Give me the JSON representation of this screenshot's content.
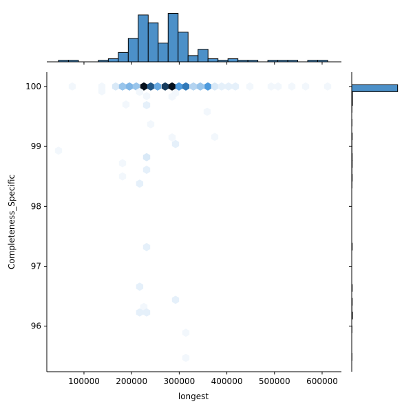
{
  "chart_data": {
    "type": "hexbin",
    "xlabel": "longest",
    "ylabel": "Completeness_Specific",
    "xlim": [
      22000,
      640500
    ],
    "ylim": [
      95.24,
      100.24
    ],
    "xticks": [
      100000,
      200000,
      300000,
      400000,
      500000,
      600000
    ],
    "yticks": [
      96,
      97,
      98,
      99,
      100
    ],
    "x": [
      75400,
      137600,
      166500,
      180900,
      195400,
      209800,
      225700,
      240200,
      254600,
      270500,
      285000,
      299400,
      313900,
      329800,
      344200,
      360100,
      374600,
      389000,
      403500,
      417900,
      448300,
      493100,
      507500,
      536400,
      565300,
      611600,
      137600,
      217000,
      231500,
      285000,
      292200,
      188200,
      231500,
      358700,
      240200,
      285000,
      292200,
      374600,
      46500,
      231500,
      180900,
      231500,
      180900,
      217000,
      231500,
      217000,
      292200,
      225700,
      217000,
      231500,
      313900,
      313900
    ],
    "y": [
      100,
      100,
      100,
      100,
      100,
      100,
      100,
      100,
      100,
      100,
      100,
      100,
      100,
      100,
      100,
      100,
      100,
      100,
      100,
      100,
      100,
      100,
      100,
      100,
      100,
      100,
      99.92,
      99.91,
      99.84,
      99.83,
      99.89,
      99.7,
      99.69,
      99.58,
      99.37,
      99.15,
      99.04,
      99.16,
      98.93,
      98.82,
      98.72,
      98.61,
      98.5,
      98.38,
      97.32,
      96.66,
      96.44,
      96.32,
      96.23,
      96.23,
      95.89,
      95.47
    ],
    "counts": [
      1,
      1,
      3,
      8,
      10,
      8,
      30,
      22,
      12,
      25,
      30,
      14,
      18,
      6,
      8,
      14,
      3,
      2,
      2,
      2,
      1,
      1,
      1,
      1,
      1,
      1,
      1,
      1,
      1,
      1,
      1,
      1,
      2,
      1,
      1,
      1,
      2,
      1,
      1,
      3,
      1,
      2,
      1,
      2,
      2,
      2,
      2,
      1,
      2,
      2,
      1,
      1
    ],
    "cmap": [
      "#f2f7fc",
      "#3a8fd9",
      "#05101c"
    ],
    "hist_color": "#4c90c8",
    "x_hist": {
      "lim": [
        0,
        33
      ],
      "bins": [
        46500,
        67430,
        88360,
        109290,
        130220,
        151150,
        172080,
        193010,
        213940,
        234870,
        255800,
        276730,
        297660,
        318590,
        339520,
        360450,
        381380,
        402310,
        423240,
        444170,
        465100,
        486030,
        506960,
        527890,
        548820,
        569750,
        590680,
        611610
      ],
      "counts": [
        1,
        1,
        0,
        0,
        1,
        2,
        6,
        15,
        30,
        25,
        12,
        31,
        19,
        4,
        8,
        2,
        1,
        2,
        1,
        1,
        0,
        1,
        1,
        1,
        0,
        1,
        1
      ]
    },
    "y_hist": {
      "lim": [
        0,
        210
      ],
      "bins": [
        95.43,
        95.545,
        95.66,
        95.775,
        95.89,
        96.005,
        96.12,
        96.235,
        96.35,
        96.465,
        96.58,
        96.695,
        96.81,
        96.925,
        97.04,
        97.155,
        97.27,
        97.385,
        97.5,
        97.615,
        97.73,
        97.845,
        97.96,
        98.075,
        98.19,
        98.305,
        98.42,
        98.535,
        98.65,
        98.765,
        98.88,
        98.995,
        99.11,
        99.225,
        99.34,
        99.455,
        99.57,
        99.685,
        99.8,
        99.915,
        100.03
      ],
      "counts": [
        1,
        0,
        0,
        0,
        1,
        0,
        3,
        1,
        2,
        0,
        2,
        0,
        0,
        0,
        0,
        0,
        2,
        0,
        0,
        0,
        0,
        0,
        0,
        0,
        0,
        1,
        2,
        1,
        2,
        2,
        1,
        1,
        2,
        0,
        1,
        0,
        1,
        3,
        3,
        200
      ]
    }
  }
}
